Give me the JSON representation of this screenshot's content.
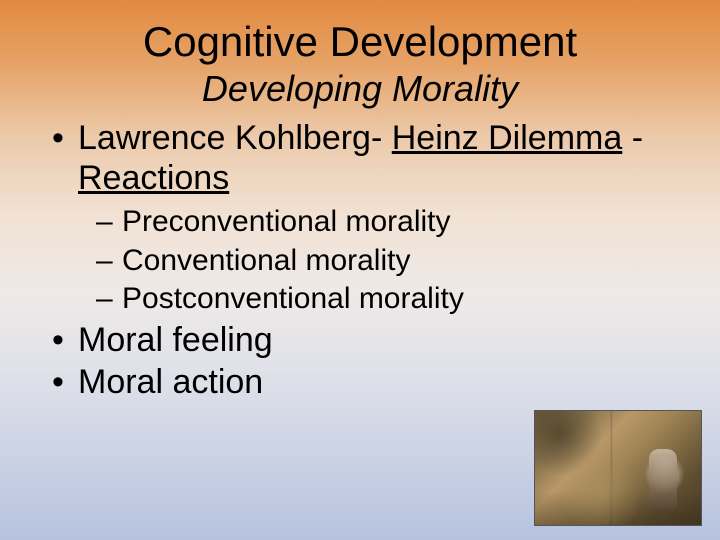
{
  "title": "Cognitive Development",
  "subtitle": "Developing Morality",
  "bullets": {
    "b1_prefix": "Lawrence Kohlberg- ",
    "b1_link1": "Heinz Dilemma",
    "b1_sep": " - ",
    "b1_link2": "Reactions",
    "sub1": "Preconventional morality",
    "sub2": "Conventional morality",
    "sub3": "Postconventional morality",
    "b2": "Moral feeling",
    "b3": "Moral action"
  },
  "colors": {
    "text": "#000000",
    "gradient_top": "#e28a3f",
    "gradient_bottom": "#b6c3df"
  },
  "typography": {
    "title_fontsize": 42,
    "subtitle_fontsize": 36,
    "level1_fontsize": 34,
    "level2_fontsize": 30,
    "font_family": "Arial"
  },
  "image": {
    "description": "store-interior-photo",
    "position": "bottom-right",
    "width": 168,
    "height": 116
  }
}
